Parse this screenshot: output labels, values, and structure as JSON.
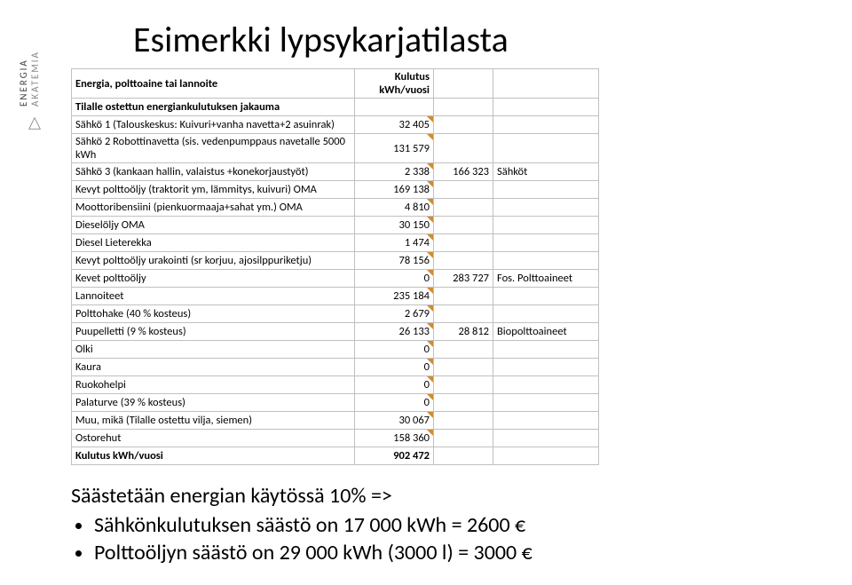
{
  "title": "Esimerkki lypsykarjatilasta",
  "logo": {
    "line1": "ENERGIA",
    "line2": "AKATEMIA"
  },
  "headers": {
    "col1": "Energia, polttoaine tai lannoite",
    "col2": "Kulutus kWh/vuosi"
  },
  "section": "Tilalle ostettun energiankulutuksen jakauma",
  "rows": [
    {
      "label": "Sähkö 1 (Talouskeskus: Kuivuri+vanha navetta+2 asuinrak)",
      "val": "32 405",
      "sum": "",
      "cat": "",
      "corner": true
    },
    {
      "label": "Sähkö 2 Robottinavetta (sis. vedenpumppaus navetalle 5000 kWh",
      "val": "131 579",
      "sum": "",
      "cat": "",
      "corner": true
    },
    {
      "label": "Sähkö 3 (kankaan hallin, valaistus +konekorjaustyöt)",
      "val": "2 338",
      "sum": "166 323",
      "cat": "Sähköt",
      "corner": true
    },
    {
      "label": "Kevyt polttoöljy (traktorit ym, lämmitys, kuivuri) OMA",
      "val": "169 138",
      "sum": "",
      "cat": "",
      "corner": true
    },
    {
      "label": "Moottoribensiini (pienkuormaaja+sahat ym.) OMA",
      "val": "4 810",
      "sum": "",
      "cat": "",
      "corner": true
    },
    {
      "label": "Dieselöljy OMA",
      "val": "30 150",
      "sum": "",
      "cat": "",
      "corner": true
    },
    {
      "label": "Diesel Lieterekka",
      "val": "1 474",
      "sum": "",
      "cat": "",
      "corner": true
    },
    {
      "label": "Kevyt polttoöljy urakointi (sr korjuu, ajosilppuriketju)",
      "val": "78 156",
      "sum": "",
      "cat": "",
      "corner": true
    },
    {
      "label": "Kevet polttoöljy",
      "val": "0",
      "sum": "283 727",
      "cat": "Fos. Polttoaineet",
      "corner": true
    },
    {
      "label": "Lannoiteet",
      "val": "235 184",
      "sum": "",
      "cat": "",
      "corner": true
    },
    {
      "label": "Polttohake (40 % kosteus)",
      "val": "2 679",
      "sum": "",
      "cat": "",
      "corner": true
    },
    {
      "label": "Puupelletti (9 % kosteus)",
      "val": "26 133",
      "sum": "28 812",
      "cat": "Biopolttoaineet",
      "corner": true
    },
    {
      "label": "Olki",
      "val": "0",
      "sum": "",
      "cat": "",
      "corner": true
    },
    {
      "label": "Kaura",
      "val": "0",
      "sum": "",
      "cat": "",
      "corner": true
    },
    {
      "label": "Ruokohelpi",
      "val": "0",
      "sum": "",
      "cat": "",
      "corner": true
    },
    {
      "label": "Palaturve (39 % kosteus)",
      "val": "0",
      "sum": "",
      "cat": "",
      "corner": true
    },
    {
      "label": "Muu, mikä (Tilalle ostettu vilja, siemen)",
      "val": "30 067",
      "sum": "",
      "cat": "",
      "corner": true
    },
    {
      "label": "Ostorehut",
      "val": "158 360",
      "sum": "",
      "cat": "",
      "corner": true
    }
  ],
  "total": {
    "label": "Kulutus kWh/vuosi",
    "val": "902 472"
  },
  "footer": {
    "line1": "Säästetään energian käytössä 10% =>",
    "b1": "Sähkönkulutuksen säästö on 17 000 kWh = 2600 €",
    "b2": "Polttoöljyn säästö on 29 000 kWh (3000 l) = 3000 €"
  }
}
